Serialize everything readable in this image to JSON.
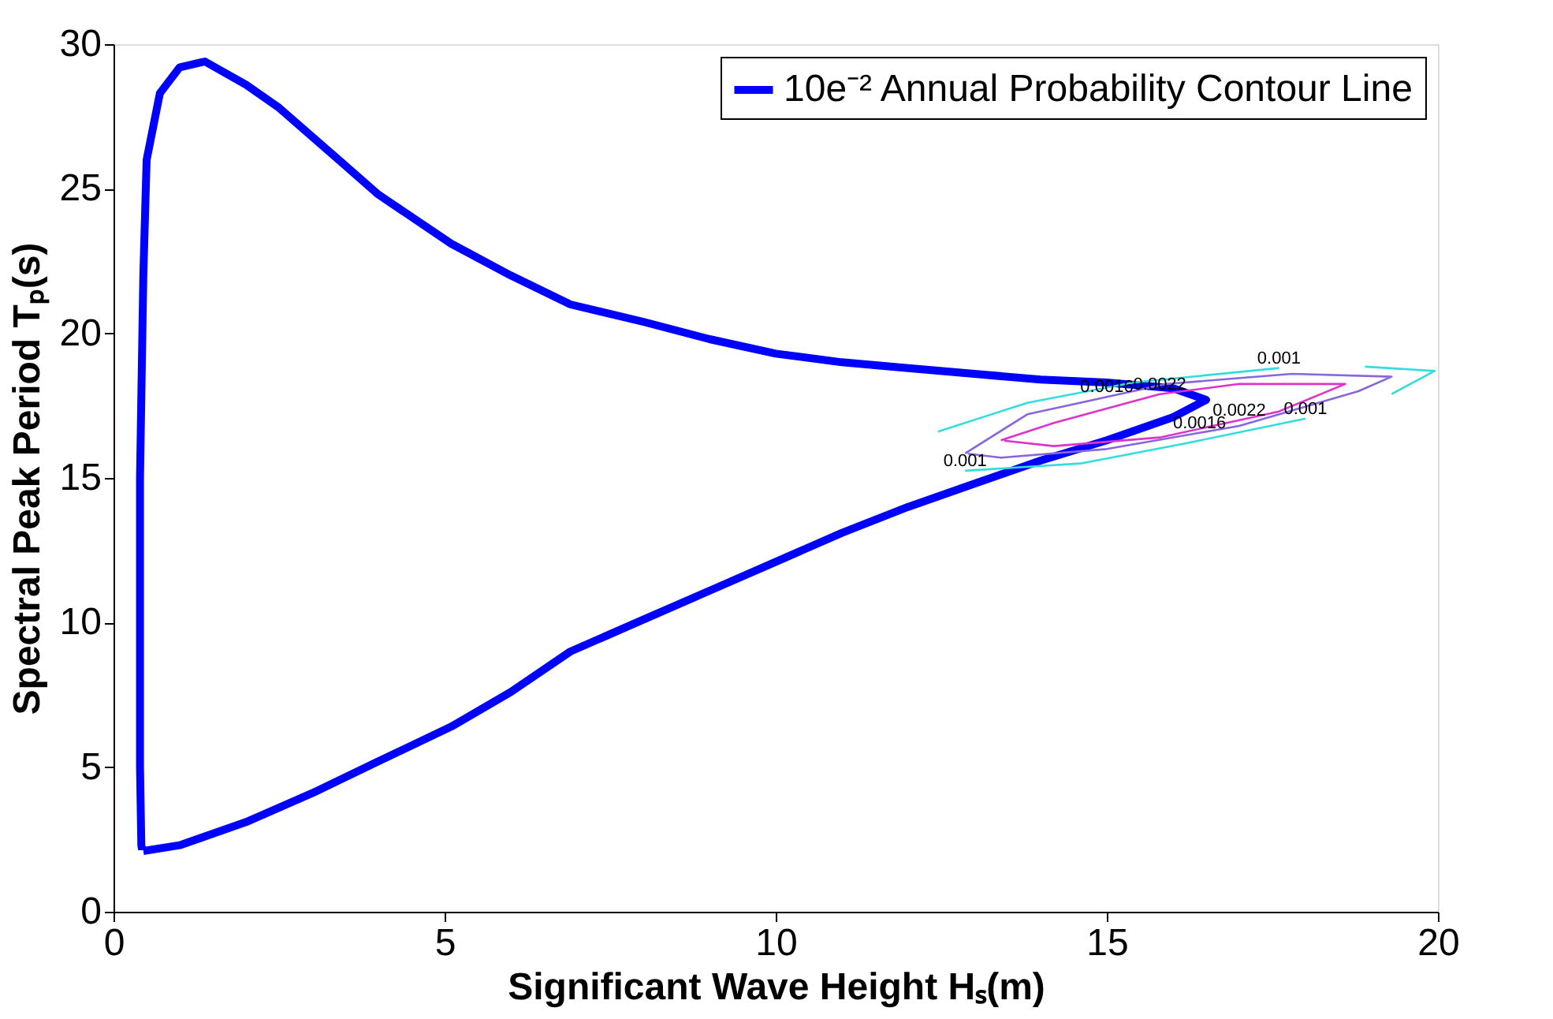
{
  "chart_data": {
    "type": "line",
    "xlabel": "Significant Wave Height Hₛ(m)",
    "ylabel": "Spectral Peak Period Tₚ(s)",
    "xlim": [
      0,
      20
    ],
    "xticks": [
      0,
      5,
      10,
      15,
      20
    ],
    "ylim": [
      0,
      30
    ],
    "yticks": [
      0,
      5,
      10,
      15,
      20,
      25,
      30
    ],
    "grid": false,
    "legend": "top right",
    "marker": "none",
    "line_style": "solid",
    "series": [
      {
        "name": "10e⁻² Annual Probability Contour Line",
        "color": "#0000ff",
        "x": [
          0.45,
          1,
          2,
          3,
          4,
          5.1,
          6,
          6.9,
          8,
          9,
          10,
          11,
          12,
          13,
          14,
          15,
          16,
          16.5,
          16,
          15,
          14,
          13,
          12,
          11,
          10,
          9,
          8,
          6.9,
          6,
          5.1,
          4,
          3.45,
          2.5,
          2,
          1.38,
          1,
          0.7,
          0.5,
          0.45,
          0.4,
          0.4,
          0.42,
          0.43
        ],
        "values": [
          2.1,
          2.3,
          3.1,
          4.1,
          5.2,
          6.4,
          7.6,
          9.0,
          10.1,
          11.1,
          12.1,
          13.1,
          14.0,
          14.8,
          15.6,
          16.3,
          17.1,
          17.7,
          18.1,
          18.3,
          18.4,
          18.6,
          18.8,
          19.0,
          19.3,
          19.8,
          20.4,
          21.0,
          22.0,
          23.1,
          24.8,
          25.9,
          27.8,
          28.6,
          29.4,
          29.2,
          28.3,
          26.0,
          22.0,
          15.0,
          5.0,
          2.3,
          2.15
        ]
      },
      {
        "color": "#33dddd",
        "x": [
          12.45,
          13.8,
          15.4,
          17.6,
          null,
          18.9,
          19.95,
          19.3,
          null,
          18.0,
          16.2,
          14.6,
          12.86
        ],
        "values": [
          16.6,
          17.6,
          18.3,
          18.8,
          null,
          18.85,
          18.7,
          17.9,
          null,
          17.05,
          16.2,
          15.5,
          15.25
        ]
      },
      {
        "color": "#8866dd",
        "x": [
          12.86,
          13.8,
          15.0,
          15.9,
          17.8,
          19.3,
          18.8,
          17.0,
          16.4,
          15.0,
          13.4,
          12.9
        ],
        "values": [
          15.85,
          17.2,
          17.8,
          18.25,
          18.6,
          18.5,
          18.0,
          16.8,
          16.56,
          16.0,
          15.7,
          15.84
        ]
      },
      {
        "color": "#dd33cc",
        "x": [
          13.4,
          14.2,
          15.8,
          17.0,
          18.6,
          17.6,
          17.0,
          15.8,
          14.2,
          13.45
        ],
        "values": [
          16.3,
          16.9,
          17.9,
          18.25,
          18.25,
          17.3,
          17.0,
          16.4,
          16.1,
          16.29
        ]
      }
    ],
    "annotations": [
      {
        "text": "0.001",
        "x": 17.6,
        "y": 18.8
      },
      {
        "text": "0.001",
        "x": 18.0,
        "y": 17.05
      },
      {
        "text": "0.001",
        "x": 12.86,
        "y": 15.25
      },
      {
        "text": "0.0016",
        "x": 15.0,
        "y": 17.8
      },
      {
        "text": "0.0022",
        "x": 15.8,
        "y": 17.9
      },
      {
        "text": "0.0016",
        "x": 16.4,
        "y": 16.56
      },
      {
        "text": "0.0022",
        "x": 17.0,
        "y": 17.0
      }
    ]
  }
}
